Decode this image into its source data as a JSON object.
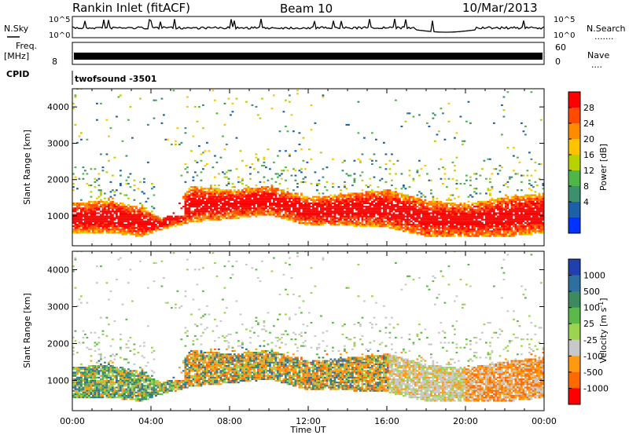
{
  "header": {
    "title": "Rankin Inlet (fitACF)",
    "beam": "Beam 10",
    "date": "10/Mar/2013"
  },
  "noise_panel": {
    "left_label": "N.Sky",
    "right_label": "N.Search",
    "right_dots": ".......",
    "ticks": [
      "10^5",
      "10^0"
    ]
  },
  "freq_panel": {
    "label_line1": "Freq.",
    "label_line2": "[MHz]",
    "left_tick": "8",
    "right_label": "Nave",
    "right_dots": "....",
    "right_ticks": [
      "60",
      "0"
    ]
  },
  "cpid_panel": {
    "label": "CPID",
    "value": "twofsound -3501"
  },
  "chart_data": [
    {
      "type": "heatmap",
      "name": "power",
      "ylabel": "Slant Range [km]",
      "xlabel": "Time UT",
      "x_range_hours": [
        0,
        24
      ],
      "ylim_km": [
        180,
        4500
      ],
      "yticks": [
        1000,
        2000,
        3000,
        4000
      ],
      "colorbar": {
        "label": "Power [dB]",
        "ticks": [
          "28",
          "24",
          "20",
          "16",
          "12",
          "8",
          "4"
        ],
        "colors": [
          "#ff0000",
          "#ff4a00",
          "#ff8c00",
          "#ffc400",
          "#b8d200",
          "#4fb64a",
          "#3d8f6e",
          "#1d5fa8",
          "#0033ff"
        ]
      },
      "echo_band_km": [
        {
          "t": 0,
          "low": 500,
          "high": 1350
        },
        {
          "t": 2,
          "low": 500,
          "high": 1400
        },
        {
          "t": 3.5,
          "low": 400,
          "high": 1200
        },
        {
          "t": 4.5,
          "low": 600,
          "high": 900
        },
        {
          "t": 6,
          "low": 800,
          "high": 1800
        },
        {
          "t": 8,
          "low": 900,
          "high": 1700
        },
        {
          "t": 10,
          "low": 1000,
          "high": 1800
        },
        {
          "t": 12,
          "low": 700,
          "high": 1500
        },
        {
          "t": 14,
          "low": 700,
          "high": 1600
        },
        {
          "t": 16,
          "low": 650,
          "high": 1700
        },
        {
          "t": 18,
          "low": 400,
          "high": 1400
        },
        {
          "t": 20,
          "low": 400,
          "high": 1300
        },
        {
          "t": 22,
          "low": 400,
          "high": 1500
        },
        {
          "t": 24,
          "low": 500,
          "high": 1600
        }
      ]
    },
    {
      "type": "heatmap",
      "name": "velocity",
      "ylabel": "Slant Range [km]",
      "xlabel": "Time UT",
      "x_range_hours": [
        0,
        24
      ],
      "ylim_km": [
        180,
        4500
      ],
      "yticks": [
        1000,
        2000,
        3000,
        4000
      ],
      "xticks": [
        "00:00",
        "04:00",
        "08:00",
        "12:00",
        "16:00",
        "20:00",
        "00:00"
      ],
      "colorbar": {
        "label": "Velocity [m s^-1]",
        "ticks": [
          "1000",
          "500",
          "100",
          "25",
          "-25",
          "-100",
          "-500",
          "-1000"
        ],
        "colors": [
          "#2040b0",
          "#2f6fa0",
          "#3e8a60",
          "#5cb84a",
          "#9cd452",
          "#c8c8c8",
          "#ff9a10",
          "#ff6a00",
          "#ff0000"
        ]
      }
    }
  ]
}
